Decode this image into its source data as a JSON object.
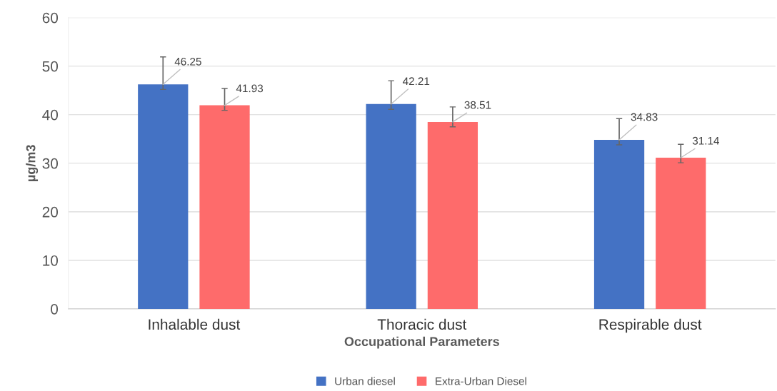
{
  "chart_data": {
    "type": "bar",
    "xlabel": "Occupational Parameters",
    "ylabel": "µg/m3",
    "categories": [
      "Inhalable dust",
      "Thoracic dust",
      "Respirable dust"
    ],
    "series": [
      {
        "name": "Urban diesel",
        "color": "#4472c4",
        "values": [
          46.25,
          42.21,
          34.83
        ],
        "errors": [
          [
            45.2,
            51.9
          ],
          [
            41.1,
            47.0
          ],
          [
            33.8,
            39.2
          ]
        ]
      },
      {
        "name": "Extra-Urban Diesel",
        "color": "#fe6b6b",
        "values": [
          41.93,
          38.51,
          31.14
        ],
        "errors": [
          [
            40.9,
            45.4
          ],
          [
            37.5,
            41.6
          ],
          [
            30.1,
            33.9
          ]
        ]
      }
    ],
    "ylim": [
      0,
      60
    ],
    "yticks": [
      0,
      10,
      20,
      30,
      40,
      50,
      60
    ],
    "grid": "y",
    "legend": "bottom",
    "data_labels": true
  }
}
